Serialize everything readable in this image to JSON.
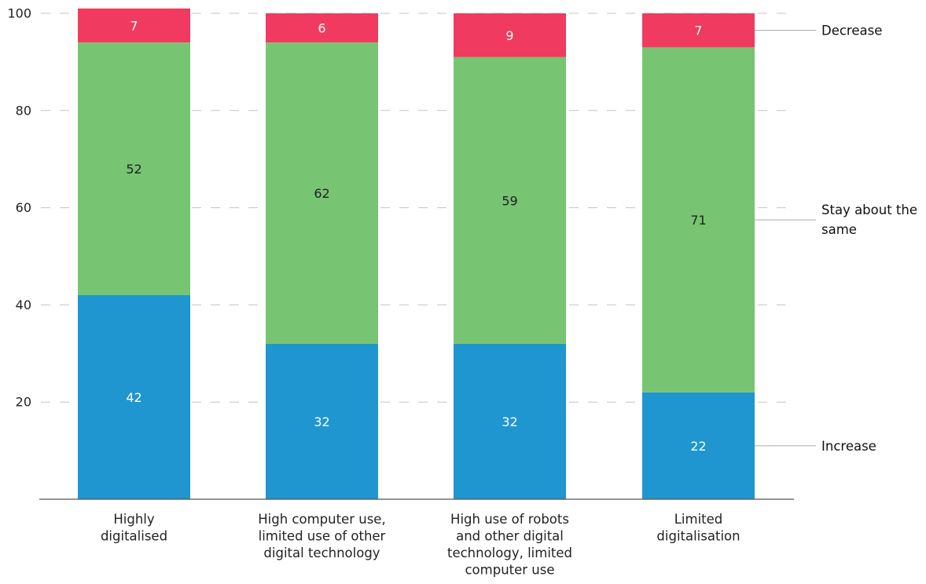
{
  "chart_data": {
    "type": "bar",
    "stacked": true,
    "title": "",
    "xlabel": "",
    "ylabel": "",
    "ylim": [
      0,
      100
    ],
    "yticks": [
      20,
      40,
      60,
      80,
      100
    ],
    "grid": "horizontal-dashed",
    "legend_placement": "right (labels beside last bar)",
    "categories": [
      [
        "Highly",
        "digitalised"
      ],
      [
        "High computer use,",
        "limited use of other",
        "digital technology"
      ],
      [
        "High use of robots",
        "and other digital",
        "technology, limited",
        "computer use"
      ],
      [
        "Limited",
        "digitalisation"
      ]
    ],
    "series": [
      {
        "name": "Increase",
        "label_lines": [
          "Increase"
        ],
        "color": "#1f96d0",
        "label_color": "#ffffff",
        "values": [
          42,
          32,
          32,
          22
        ]
      },
      {
        "name": "Stay about the same",
        "label_lines": [
          "Stay about the",
          "same"
        ],
        "color": "#77c472",
        "label_color": "#222222",
        "values": [
          52,
          62,
          59,
          71
        ]
      },
      {
        "name": "Decrease",
        "label_lines": [
          "Decrease"
        ],
        "color": "#f03a5f",
        "label_color": "#ffffff",
        "values": [
          7,
          6,
          9,
          7
        ]
      }
    ]
  }
}
